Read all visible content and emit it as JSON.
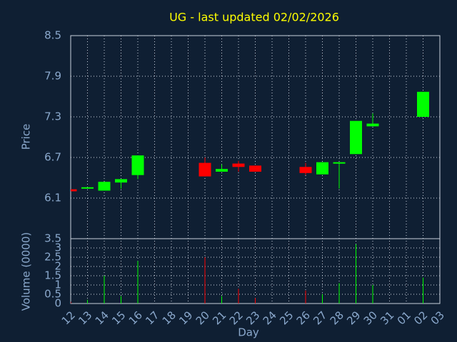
{
  "chart_data": {
    "type": "candlestick",
    "title": "UG - last updated 02/02/2026",
    "ylabel": "Price",
    "xlabel": "Day",
    "categories": [
      "12",
      "13",
      "14",
      "15",
      "16",
      "17",
      "18",
      "19",
      "20",
      "21",
      "22",
      "23",
      "24",
      "25",
      "26",
      "27",
      "28",
      "29",
      "30",
      "31",
      "01",
      "02",
      "03"
    ],
    "open": [
      6.23,
      6.24,
      6.21,
      6.33,
      6.44,
      null,
      null,
      null,
      6.62,
      6.49,
      6.61,
      6.58,
      null,
      null,
      6.56,
      6.45,
      6.62,
      6.75,
      7.16,
      null,
      null,
      7.3,
      null
    ],
    "high": [
      6.23,
      6.26,
      6.34,
      6.38,
      6.73,
      null,
      null,
      null,
      6.7,
      6.6,
      6.65,
      6.58,
      null,
      null,
      6.62,
      6.63,
      6.63,
      7.24,
      7.35,
      null,
      null,
      7.67,
      null
    ],
    "low": [
      6.2,
      6.24,
      6.21,
      6.24,
      6.38,
      null,
      null,
      null,
      6.42,
      6.49,
      6.49,
      6.49,
      null,
      null,
      6.44,
      6.45,
      6.24,
      6.75,
      7.16,
      null,
      null,
      7.3,
      null
    ],
    "close": [
      6.2,
      6.26,
      6.34,
      6.38,
      6.73,
      null,
      null,
      null,
      6.42,
      6.53,
      6.56,
      6.49,
      null,
      null,
      6.47,
      6.63,
      6.63,
      7.24,
      7.2,
      null,
      null,
      7.67,
      null
    ],
    "up_color": "#00ff00",
    "down_color": "#ff0000",
    "ylim": [
      5.5,
      8.5
    ],
    "yticks": [
      6.1,
      6.7,
      7.3,
      7.9,
      8.5
    ],
    "grid": true,
    "volume": {
      "label": "Volume (0000)",
      "values": [
        0.1,
        0.2,
        1.5,
        0.4,
        2.3,
        null,
        null,
        null,
        2.5,
        0.4,
        0.8,
        0.3,
        null,
        null,
        0.7,
        0.5,
        1.1,
        3.2,
        1.0,
        null,
        null,
        1.4,
        null
      ],
      "ylim": [
        0,
        3.5
      ],
      "yticks": [
        0,
        0.5,
        1,
        1.5,
        2,
        2.5,
        3,
        3.5
      ]
    }
  }
}
